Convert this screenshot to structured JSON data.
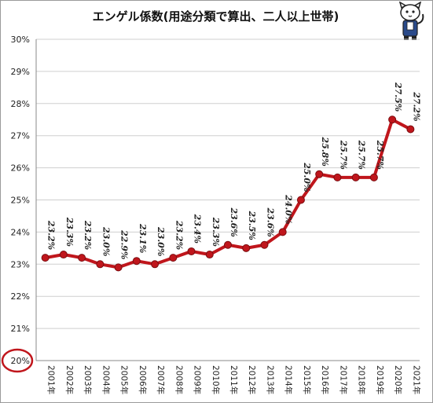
{
  "chart_data": {
    "type": "line",
    "title": "エンゲル係数(用途分類で算出、二人以上世帯)",
    "categories": [
      "2001年",
      "2002年",
      "2003年",
      "2004年",
      "2005年",
      "2006年",
      "2007年",
      "2008年",
      "2009年",
      "2010年",
      "2011年",
      "2012年",
      "2013年",
      "2014年",
      "2015年",
      "2016年",
      "2017年",
      "2018年",
      "2019年",
      "2020年",
      "2021年"
    ],
    "series": [
      {
        "values": [
          23.2,
          23.3,
          23.2,
          23.0,
          22.9,
          23.1,
          23.0,
          23.2,
          23.4,
          23.3,
          23.6,
          23.5,
          23.6,
          24.0,
          25.0,
          25.8,
          25.7,
          25.7,
          25.7,
          27.5,
          27.2
        ]
      }
    ],
    "data_labels": [
      "23.2%",
      "23.3%",
      "23.2%",
      "23.0%",
      "22.9%",
      "23.1%",
      "23.0%",
      "23.2%",
      "23.4%",
      "23.3%",
      "23.6%",
      "23.5%",
      "23.6%",
      "24.0%",
      "25.0%",
      "25.8%",
      "25.7%",
      "25.7%",
      "25.7%",
      "27.5%",
      "27.2%"
    ],
    "ylim": [
      20,
      30
    ],
    "yticks": [
      20,
      21,
      22,
      23,
      24,
      25,
      26,
      27,
      28,
      29,
      30
    ],
    "ytick_labels": [
      "20%",
      "21%",
      "22%",
      "23%",
      "24%",
      "25%",
      "26%",
      "27%",
      "28%",
      "29%",
      "30%"
    ],
    "grid": true,
    "legend": "none",
    "line_color": "#c0161c",
    "marker_color": "#c0161c",
    "highlight": {
      "tick": "20%",
      "color": "#c0161c",
      "shape": "circle"
    }
  },
  "mascot_icon": "cat-mascot-icon"
}
